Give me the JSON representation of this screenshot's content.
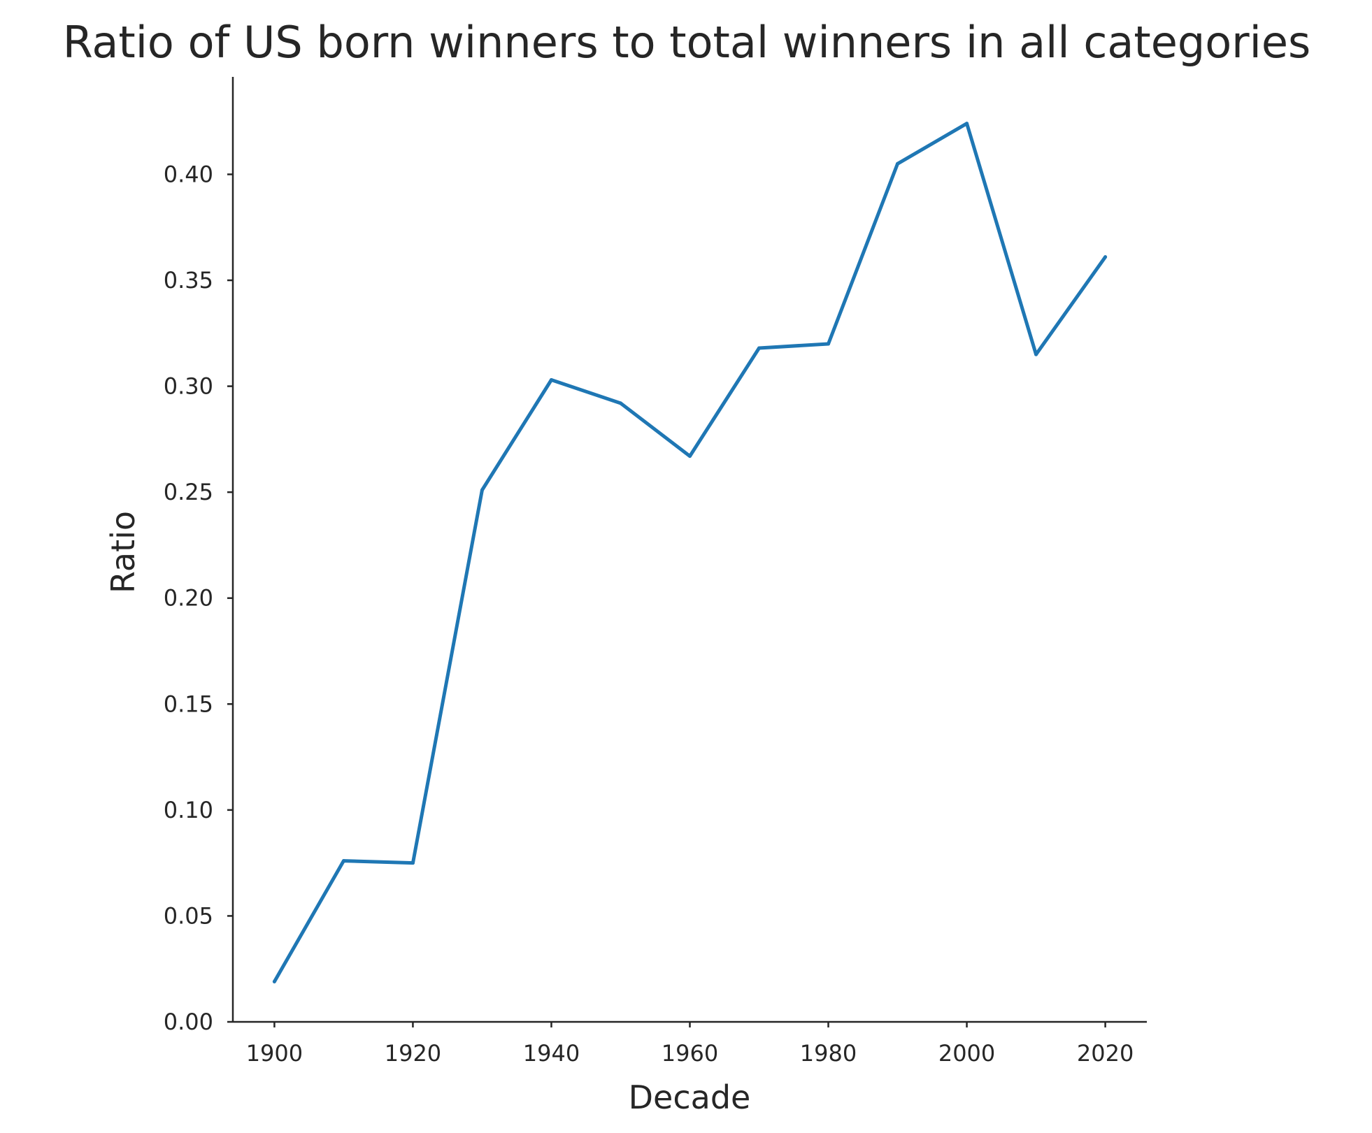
{
  "chart_data": {
    "type": "line",
    "title": "Ratio of US born winners to total winners in all categories",
    "xlabel": "Decade",
    "ylabel": "Ratio",
    "x": [
      1900,
      1910,
      1920,
      1930,
      1940,
      1950,
      1960,
      1970,
      1980,
      1990,
      2000,
      2010,
      2020
    ],
    "series": [
      {
        "values": [
          0.019,
          0.076,
          0.075,
          0.251,
          0.303,
          0.292,
          0.267,
          0.318,
          0.32,
          0.405,
          0.424,
          0.315,
          0.361
        ],
        "color": "#1f77b4"
      }
    ],
    "xlim": [
      1894,
      2026
    ],
    "ylim": [
      0.0,
      0.446
    ],
    "xticks": [
      "1900",
      "1920",
      "1940",
      "1960",
      "1980",
      "2000",
      "2020"
    ],
    "yticks": [
      "0.00",
      "0.05",
      "0.10",
      "0.15",
      "0.20",
      "0.25",
      "0.30",
      "0.35",
      "0.40"
    ],
    "grid": false,
    "legend": "none"
  }
}
